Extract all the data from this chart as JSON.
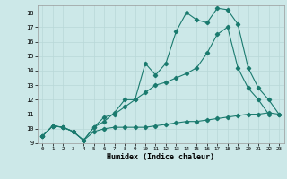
{
  "xlabel": "Humidex (Indice chaleur)",
  "bg_color": "#cce8e8",
  "line_color": "#1a7a6e",
  "grid_color": "#b8d8d8",
  "xlim": [
    -0.5,
    23.5
  ],
  "ylim": [
    9,
    18.5
  ],
  "xticks": [
    0,
    1,
    2,
    3,
    4,
    5,
    6,
    7,
    8,
    9,
    10,
    11,
    12,
    13,
    14,
    15,
    16,
    17,
    18,
    19,
    20,
    21,
    22,
    23
  ],
  "yticks": [
    9,
    10,
    11,
    12,
    13,
    14,
    15,
    16,
    17,
    18
  ],
  "line1_x": [
    0,
    1,
    2,
    3,
    4,
    5,
    6,
    7,
    8,
    9,
    10,
    11,
    12,
    13,
    14,
    15,
    16,
    17,
    18,
    19,
    20,
    21,
    22,
    23
  ],
  "line1_y": [
    9.5,
    10.2,
    10.1,
    9.8,
    9.2,
    9.8,
    10.0,
    10.1,
    10.1,
    10.1,
    10.1,
    10.2,
    10.3,
    10.4,
    10.5,
    10.5,
    10.6,
    10.7,
    10.8,
    10.9,
    11.0,
    11.0,
    11.1,
    11.0
  ],
  "line2_x": [
    0,
    1,
    2,
    3,
    4,
    5,
    6,
    7,
    8,
    9,
    10,
    11,
    12,
    13,
    14,
    15,
    16,
    17,
    18,
    19,
    20,
    21,
    22,
    23
  ],
  "line2_y": [
    9.5,
    10.2,
    10.1,
    9.8,
    9.2,
    10.1,
    10.5,
    11.1,
    12.0,
    12.0,
    14.5,
    13.7,
    14.5,
    16.7,
    18.0,
    17.5,
    17.3,
    18.3,
    18.2,
    17.2,
    14.2,
    12.8,
    12.0,
    11.0
  ],
  "line3_x": [
    0,
    1,
    2,
    3,
    4,
    5,
    6,
    7,
    8,
    9,
    10,
    11,
    12,
    13,
    14,
    15,
    16,
    17,
    18,
    19,
    20,
    21,
    22,
    23
  ],
  "line3_y": [
    9.5,
    10.2,
    10.1,
    9.8,
    9.2,
    10.1,
    10.8,
    11.0,
    11.5,
    12.0,
    12.5,
    13.0,
    13.2,
    13.5,
    13.8,
    14.2,
    15.2,
    16.5,
    17.0,
    14.2,
    12.8,
    12.0,
    11.0,
    null
  ]
}
